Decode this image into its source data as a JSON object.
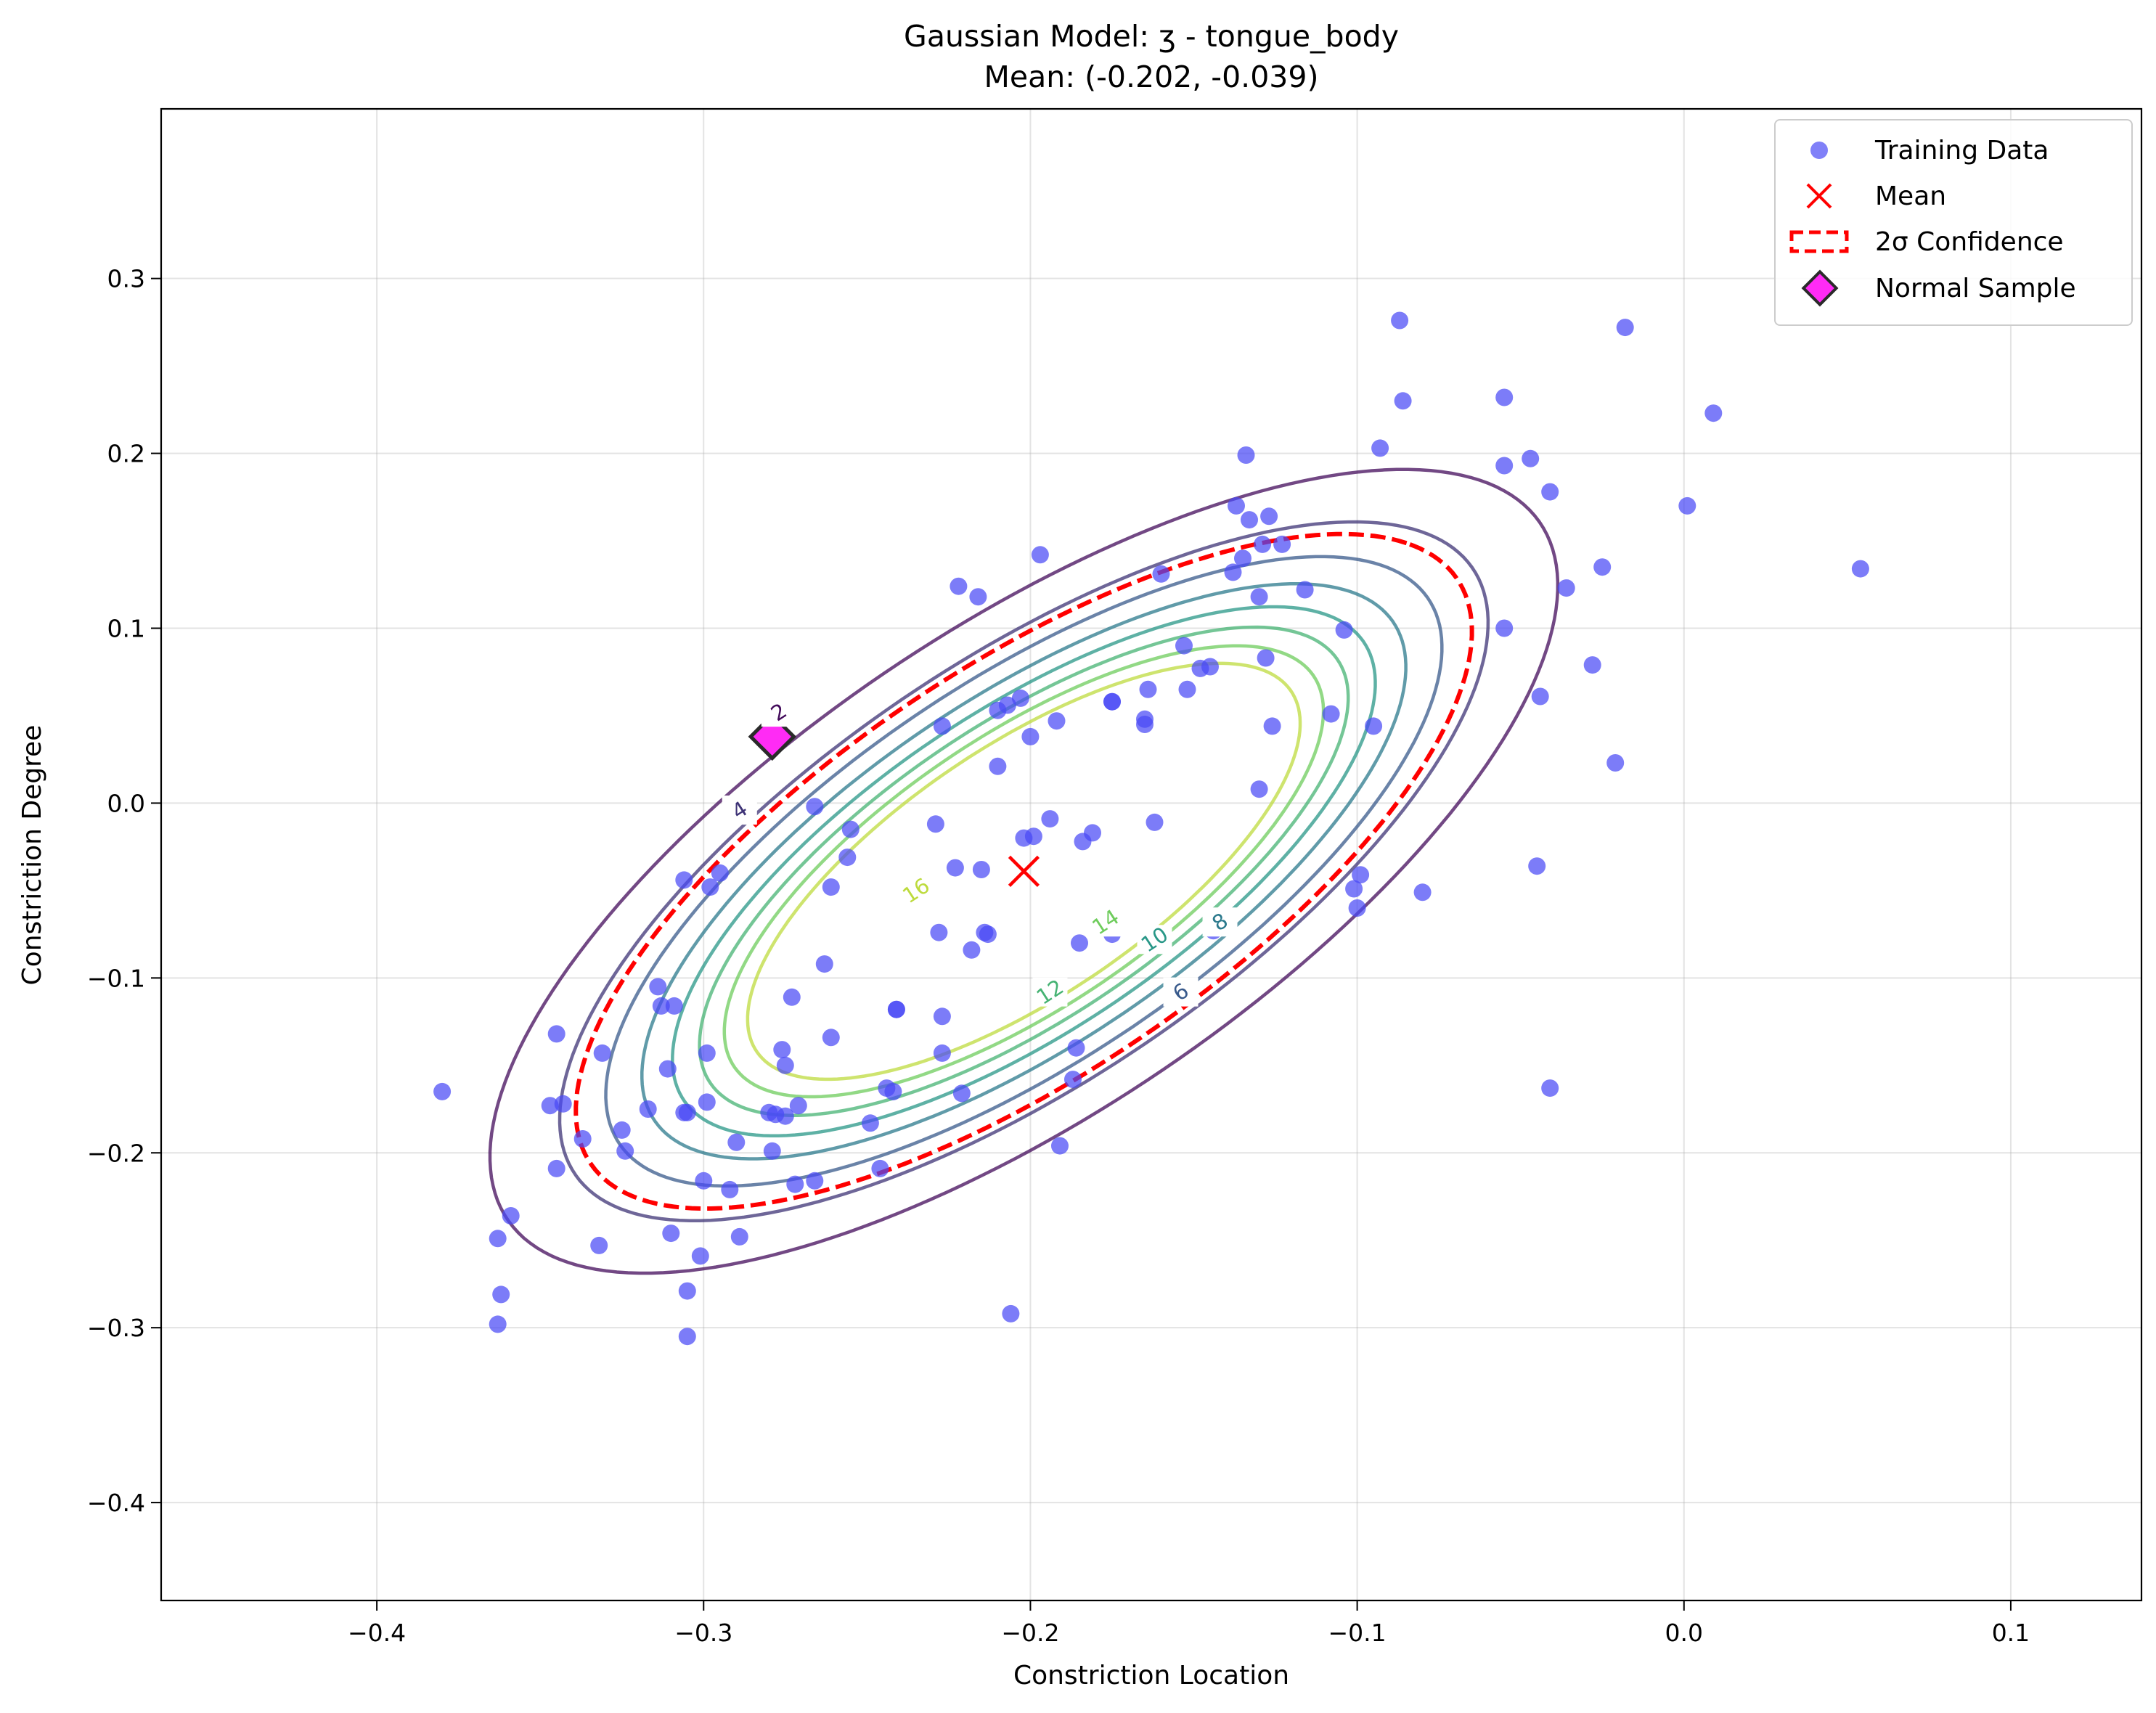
{
  "chart_data": {
    "type": "scatter",
    "title": "Gaussian Model: ʒ - tongue_body",
    "subtitle": "Mean: (-0.202, -0.039)",
    "xlabel": "Constriction Location",
    "ylabel": "Constriction Degree",
    "xlim": [
      -0.466,
      0.14
    ],
    "ylim": [
      -0.456,
      0.397
    ],
    "xticks": [
      -0.4,
      -0.3,
      -0.2,
      -0.1,
      0.0,
      0.1
    ],
    "xtick_labels": [
      "−0.4",
      "−0.3",
      "−0.2",
      "−0.1",
      "0.0",
      "0.1"
    ],
    "yticks": [
      -0.4,
      -0.3,
      -0.2,
      -0.1,
      0.0,
      0.1,
      0.2,
      0.3
    ],
    "ytick_labels": [
      "−0.4",
      "−0.3",
      "−0.2",
      "−0.1",
      "0.0",
      "0.1",
      "0.2",
      "0.3"
    ],
    "grid": true,
    "legend_position": "top-right",
    "legend": [
      {
        "key": "training",
        "label": "Training Data"
      },
      {
        "key": "mean",
        "label": "Mean"
      },
      {
        "key": "confidence",
        "label": "2σ Confidence"
      },
      {
        "key": "sample",
        "label": "Normal Sample"
      }
    ],
    "colors": {
      "training": "#4a4af5",
      "mean": "#ff0000",
      "confidence": "#ff0000",
      "sample": "#ff2bf5",
      "sample_edge": "#2a2a2a"
    },
    "gaussian": {
      "mean": [
        -0.202,
        -0.039
      ],
      "covariance": [
        [
          0.0047,
          0.0047
        ],
        [
          0.0047,
          0.0093
        ]
      ],
      "contour_levels": [
        2,
        4,
        6,
        8,
        10,
        12,
        14,
        16
      ],
      "contour_labels": [
        {
          "level": 2,
          "text": "2",
          "x": -0.277,
          "y": 0.052
        },
        {
          "level": 4,
          "text": "4",
          "x": -0.289,
          "y": -0.004
        },
        {
          "level": 6,
          "text": "6",
          "x": -0.154,
          "y": -0.108
        },
        {
          "level": 8,
          "text": "8",
          "x": -0.142,
          "y": -0.068
        },
        {
          "level": 10,
          "text": "10",
          "x": -0.162,
          "y": -0.078
        },
        {
          "level": 12,
          "text": "12",
          "x": -0.194,
          "y": -0.108
        },
        {
          "level": 14,
          "text": "14",
          "x": -0.177,
          "y": -0.068
        },
        {
          "level": 16,
          "text": "16",
          "x": -0.235,
          "y": -0.05
        }
      ],
      "confidence_sigma": 2
    },
    "normal_sample": {
      "x": -0.279,
      "y": 0.038
    },
    "training_data": {
      "x": [
        -0.38,
        -0.363,
        -0.363,
        -0.362,
        -0.359,
        -0.345,
        -0.345,
        -0.343,
        -0.347,
        -0.337,
        -0.332,
        -0.331,
        -0.325,
        -0.324,
        -0.317,
        -0.314,
        -0.313,
        -0.311,
        -0.31,
        -0.309,
        -0.306,
        -0.306,
        -0.305,
        -0.305,
        -0.305,
        -0.301,
        -0.3,
        -0.299,
        -0.299,
        -0.298,
        -0.295,
        -0.292,
        -0.29,
        -0.289,
        -0.28,
        -0.279,
        -0.278,
        -0.276,
        -0.275,
        -0.275,
        -0.273,
        -0.272,
        -0.271,
        -0.266,
        -0.266,
        -0.263,
        -0.261,
        -0.261,
        -0.256,
        -0.255,
        -0.249,
        -0.246,
        -0.244,
        -0.242,
        -0.241,
        -0.241,
        -0.229,
        -0.228,
        -0.227,
        -0.227,
        -0.227,
        -0.223,
        -0.222,
        -0.221,
        -0.218,
        -0.216,
        -0.215,
        -0.214,
        -0.213,
        -0.21,
        -0.21,
        -0.207,
        -0.206,
        -0.203,
        -0.202,
        -0.2,
        -0.199,
        -0.197,
        -0.194,
        -0.192,
        -0.191,
        -0.187,
        -0.186,
        -0.185,
        -0.184,
        -0.181,
        -0.175,
        -0.175,
        -0.175,
        -0.165,
        -0.165,
        -0.164,
        -0.162,
        -0.16,
        -0.153,
        -0.152,
        -0.148,
        -0.145,
        -0.144,
        -0.138,
        -0.137,
        -0.135,
        -0.134,
        -0.133,
        -0.13,
        -0.13,
        -0.129,
        -0.128,
        -0.127,
        -0.126,
        -0.123,
        -0.116,
        -0.108,
        -0.104,
        -0.101,
        -0.1,
        -0.099,
        -0.095,
        -0.093,
        -0.087,
        -0.086,
        -0.08,
        -0.055,
        -0.055,
        -0.055,
        -0.047,
        -0.045,
        -0.044,
        -0.041,
        -0.041,
        -0.036,
        -0.028,
        -0.025,
        -0.021,
        -0.018,
        0.001,
        0.009,
        0.054
      ],
      "y": [
        -0.165,
        -0.298,
        -0.249,
        -0.281,
        -0.236,
        -0.209,
        -0.132,
        -0.172,
        -0.173,
        -0.192,
        -0.253,
        -0.143,
        -0.187,
        -0.199,
        -0.175,
        -0.105,
        -0.116,
        -0.152,
        -0.246,
        -0.116,
        -0.177,
        -0.044,
        -0.305,
        -0.279,
        -0.177,
        -0.259,
        -0.216,
        -0.143,
        -0.171,
        -0.048,
        -0.04,
        -0.221,
        -0.194,
        -0.248,
        -0.177,
        -0.199,
        -0.178,
        -0.141,
        -0.15,
        -0.179,
        -0.111,
        -0.218,
        -0.173,
        -0.216,
        -0.002,
        -0.092,
        -0.048,
        -0.134,
        -0.031,
        -0.015,
        -0.183,
        -0.209,
        -0.163,
        -0.165,
        -0.118,
        -0.118,
        -0.012,
        -0.074,
        -0.143,
        -0.122,
        0.044,
        -0.037,
        0.124,
        -0.166,
        -0.084,
        0.118,
        -0.038,
        -0.074,
        -0.075,
        0.021,
        0.053,
        0.056,
        -0.292,
        0.06,
        -0.02,
        0.038,
        -0.019,
        0.142,
        -0.009,
        0.047,
        -0.196,
        -0.158,
        -0.14,
        -0.08,
        -0.022,
        -0.017,
        -0.075,
        0.058,
        0.058,
        0.045,
        0.048,
        0.065,
        -0.011,
        0.131,
        0.09,
        0.065,
        0.077,
        0.078,
        -0.073,
        0.132,
        0.17,
        0.14,
        0.199,
        0.162,
        0.008,
        0.118,
        0.148,
        0.083,
        0.164,
        0.044,
        0.148,
        0.122,
        0.051,
        0.099,
        -0.049,
        -0.06,
        -0.041,
        0.044,
        0.203,
        0.276,
        0.23,
        -0.051,
        0.232,
        0.193,
        0.1,
        0.197,
        -0.036,
        0.061,
        0.178,
        -0.163,
        0.123,
        0.079,
        0.135,
        0.023,
        0.272,
        0.17,
        0.223,
        0.134
      ]
    }
  }
}
